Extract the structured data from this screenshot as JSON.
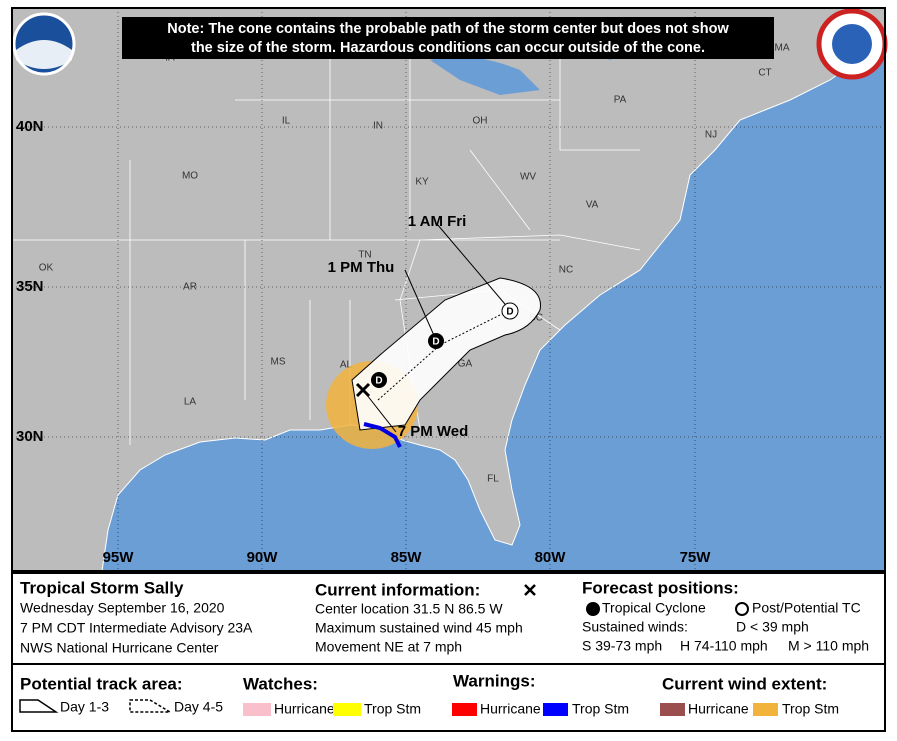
{
  "note": [
    "Note: The cone contains the probable path of the storm center but does not show",
    "the size of the storm. Hazardous conditions can occur outside of the cone."
  ],
  "map": {
    "latitude_labels": [
      "40N",
      "35N",
      "30N"
    ],
    "longitude_labels": [
      "95W",
      "90W",
      "85W",
      "80W",
      "75W"
    ],
    "state_labels": [
      "IA",
      "IL",
      "IN",
      "OH",
      "PA",
      "MO",
      "KY",
      "WV",
      "VA",
      "NJ",
      "MA",
      "CT",
      "OK",
      "AR",
      "TN",
      "NC",
      "SC",
      "MS",
      "AL",
      "GA",
      "LA",
      "FL"
    ],
    "forecast_labels": [
      "1 AM Fri",
      "1 PM Thu",
      "7 PM Wed"
    ],
    "forecast_points": [
      "D",
      "D",
      "D"
    ]
  },
  "storm": {
    "title": "Tropical Storm Sally",
    "lines": [
      "Wednesday September 16, 2020",
      "7 PM CDT Intermediate Advisory 23A",
      "NWS National Hurricane Center"
    ]
  },
  "current": {
    "title": "Current information:",
    "lines": [
      "Center location 31.5 N 86.5 W",
      "Maximum sustained wind 45 mph",
      "Movement NE at 7 mph"
    ]
  },
  "forecast": {
    "title": "Forecast positions:",
    "symbols": [
      "Tropical Cyclone",
      "Post/Potential TC"
    ],
    "winds": [
      "Sustained winds:",
      "D < 39 mph",
      "S 39-73 mph",
      "H 74-110 mph",
      "M > 110 mph"
    ]
  },
  "legend": {
    "track": {
      "title": "Potential track area:",
      "items": [
        "Day 1-3",
        "Day 4-5"
      ]
    },
    "watches": {
      "title": "Watches:",
      "items": [
        "Hurricane",
        "Trop Stm"
      ]
    },
    "warnings": {
      "title": "Warnings:",
      "items": [
        "Hurricane",
        "Trop Stm"
      ]
    },
    "wind": {
      "title": "Current wind extent:",
      "items": [
        "Hurricane",
        "Trop Stm"
      ]
    }
  }
}
